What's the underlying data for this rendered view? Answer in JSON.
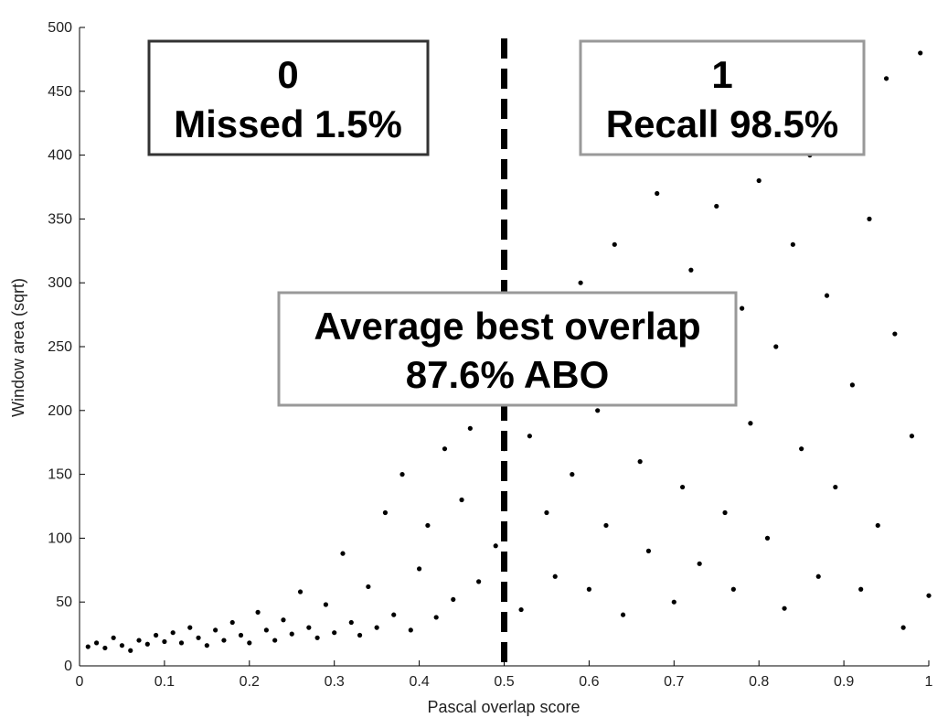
{
  "chart_data": {
    "type": "scatter",
    "title": "",
    "xlabel": "Pascal overlap score",
    "ylabel": "Window area (sqrt)",
    "xlim": [
      0,
      1
    ],
    "ylim": [
      0,
      500
    ],
    "x_ticks": [
      0,
      0.1,
      0.2,
      0.3,
      0.4,
      0.5,
      0.6,
      0.7,
      0.8,
      0.9,
      1
    ],
    "x_tick_labels": [
      "0",
      "0.1",
      "0.2",
      "0.3",
      "0.4",
      "0.5",
      "0.6",
      "0.7",
      "0.8",
      "0.9",
      "1"
    ],
    "y_ticks": [
      0,
      50,
      100,
      150,
      200,
      250,
      300,
      350,
      400,
      450,
      500
    ],
    "y_tick_labels": [
      "0",
      "50",
      "100",
      "150",
      "200",
      "250",
      "300",
      "350",
      "400",
      "450",
      "500"
    ],
    "grid": false,
    "marker_color": "#000000",
    "threshold_line": {
      "x": 0.5,
      "style": "dashed",
      "color": "#000000"
    },
    "annotations": [
      {
        "id": "missed",
        "lines": [
          "0",
          "Missed 1.5%"
        ],
        "border_color": "#333333"
      },
      {
        "id": "recall",
        "lines": [
          "1",
          "Recall 98.5%"
        ],
        "border_color": "#999999"
      },
      {
        "id": "abo",
        "lines": [
          "Average best overlap",
          "87.6% ABO"
        ],
        "border_color": "#999999"
      }
    ],
    "series": [
      {
        "points": [
          [
            0.01,
            15
          ],
          [
            0.02,
            18
          ],
          [
            0.03,
            14
          ],
          [
            0.04,
            22
          ],
          [
            0.05,
            16
          ],
          [
            0.06,
            12
          ],
          [
            0.07,
            20
          ],
          [
            0.08,
            17
          ],
          [
            0.09,
            24
          ],
          [
            0.1,
            19
          ],
          [
            0.11,
            26
          ],
          [
            0.12,
            18
          ],
          [
            0.13,
            30
          ],
          [
            0.14,
            22
          ],
          [
            0.15,
            16
          ],
          [
            0.16,
            28
          ],
          [
            0.17,
            20
          ],
          [
            0.18,
            34
          ],
          [
            0.19,
            24
          ],
          [
            0.2,
            18
          ],
          [
            0.21,
            42
          ],
          [
            0.22,
            28
          ],
          [
            0.23,
            20
          ],
          [
            0.24,
            36
          ],
          [
            0.25,
            25
          ],
          [
            0.26,
            58
          ],
          [
            0.27,
            30
          ],
          [
            0.28,
            22
          ],
          [
            0.29,
            48
          ],
          [
            0.3,
            26
          ],
          [
            0.31,
            88
          ],
          [
            0.32,
            34
          ],
          [
            0.33,
            24
          ],
          [
            0.34,
            62
          ],
          [
            0.35,
            30
          ],
          [
            0.36,
            120
          ],
          [
            0.37,
            40
          ],
          [
            0.38,
            150
          ],
          [
            0.39,
            28
          ],
          [
            0.4,
            76
          ],
          [
            0.41,
            110
          ],
          [
            0.42,
            38
          ],
          [
            0.43,
            170
          ],
          [
            0.44,
            52
          ],
          [
            0.45,
            130
          ],
          [
            0.46,
            186
          ],
          [
            0.47,
            66
          ],
          [
            0.48,
            210
          ],
          [
            0.49,
            94
          ],
          [
            0.5,
            170
          ],
          [
            0.51,
            230
          ],
          [
            0.52,
            44
          ],
          [
            0.53,
            180
          ],
          [
            0.54,
            290
          ],
          [
            0.55,
            120
          ],
          [
            0.56,
            70
          ],
          [
            0.57,
            250
          ],
          [
            0.58,
            150
          ],
          [
            0.59,
            300
          ],
          [
            0.6,
            60
          ],
          [
            0.61,
            200
          ],
          [
            0.62,
            110
          ],
          [
            0.63,
            330
          ],
          [
            0.64,
            40
          ],
          [
            0.65,
            260
          ],
          [
            0.66,
            160
          ],
          [
            0.67,
            90
          ],
          [
            0.68,
            370
          ],
          [
            0.69,
            220
          ],
          [
            0.7,
            50
          ],
          [
            0.71,
            140
          ],
          [
            0.72,
            310
          ],
          [
            0.73,
            80
          ],
          [
            0.74,
            240
          ],
          [
            0.75,
            360
          ],
          [
            0.76,
            120
          ],
          [
            0.77,
            60
          ],
          [
            0.78,
            280
          ],
          [
            0.79,
            190
          ],
          [
            0.8,
            380
          ],
          [
            0.81,
            100
          ],
          [
            0.82,
            250
          ],
          [
            0.83,
            45
          ],
          [
            0.84,
            330
          ],
          [
            0.85,
            170
          ],
          [
            0.86,
            400
          ],
          [
            0.87,
            70
          ],
          [
            0.88,
            290
          ],
          [
            0.89,
            140
          ],
          [
            0.9,
            410
          ],
          [
            0.91,
            220
          ],
          [
            0.92,
            60
          ],
          [
            0.93,
            350
          ],
          [
            0.94,
            110
          ],
          [
            0.95,
            460
          ],
          [
            0.96,
            260
          ],
          [
            0.97,
            30
          ],
          [
            0.98,
            180
          ],
          [
            0.99,
            480
          ],
          [
            1.0,
            55
          ]
        ]
      }
    ]
  }
}
